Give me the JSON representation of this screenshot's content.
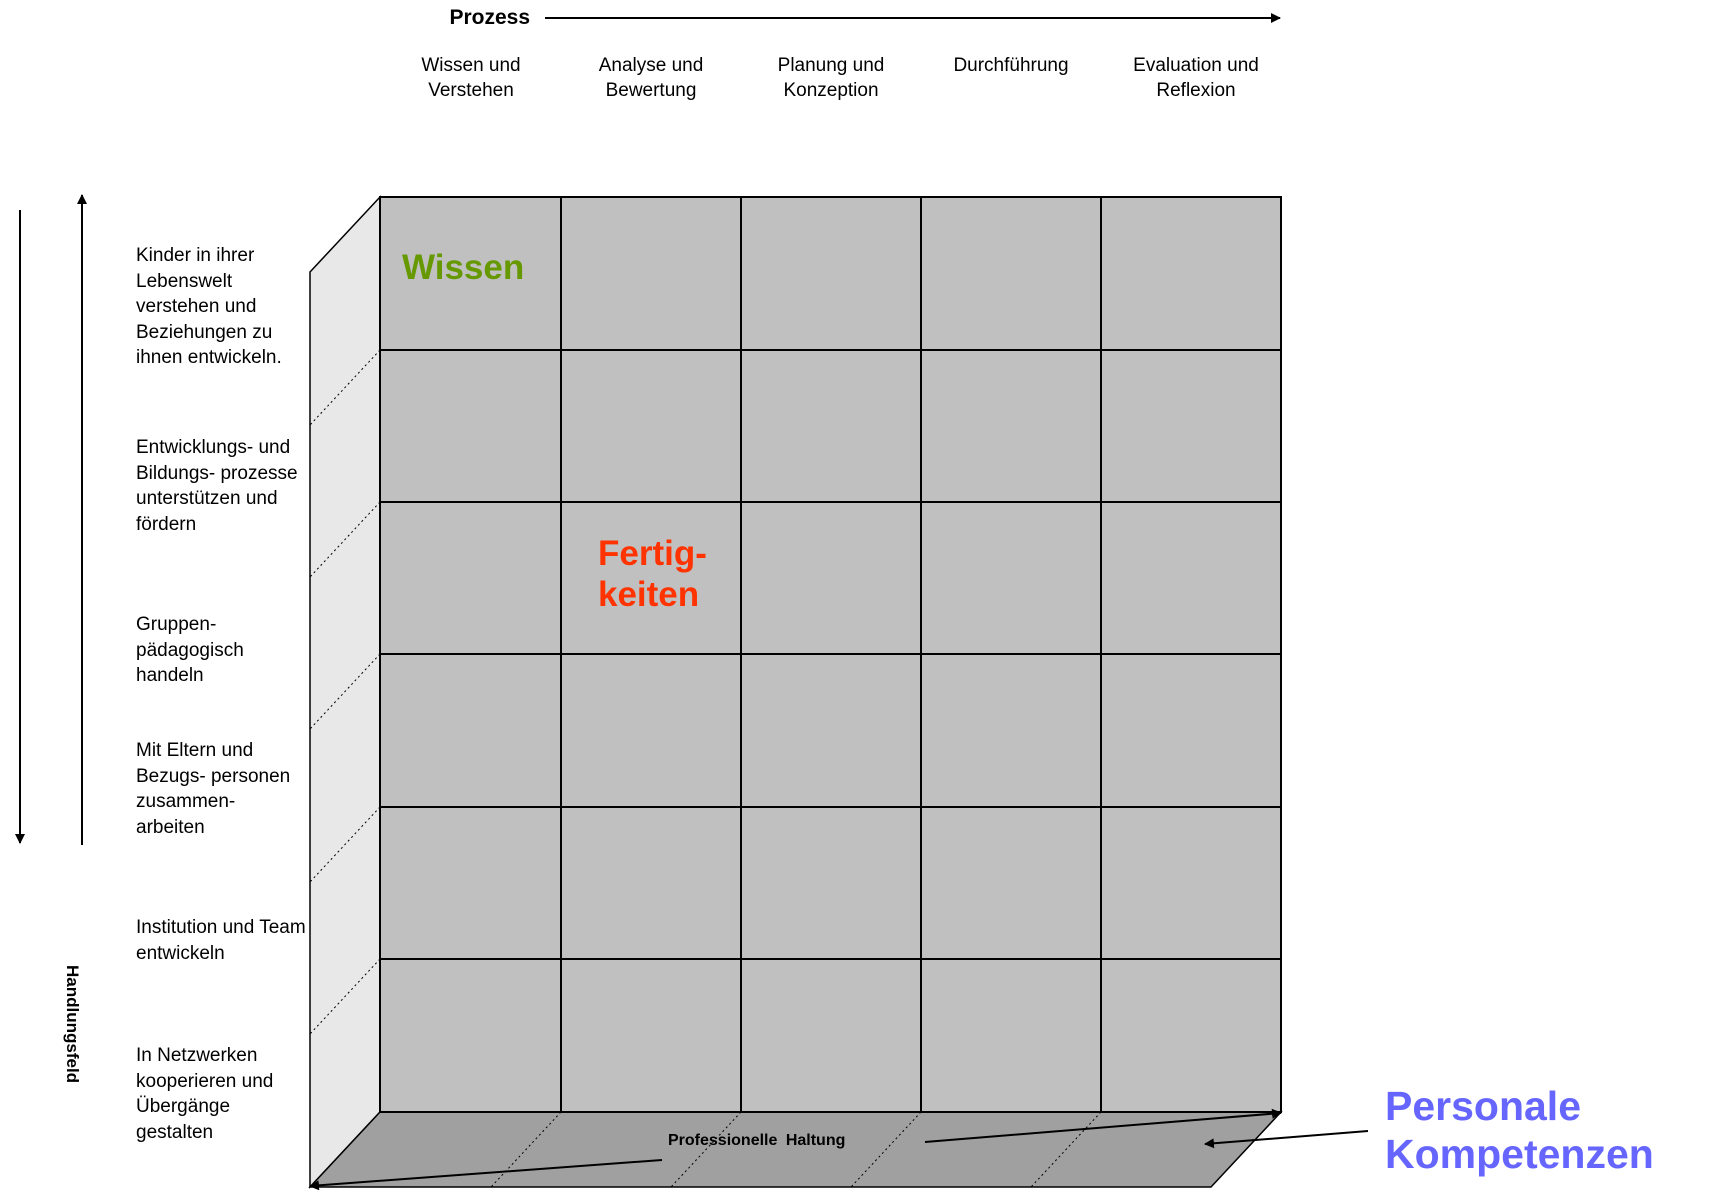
{
  "process_axis": {
    "title": "Prozess",
    "columns": [
      {
        "line1": "Wissen und",
        "line2": "Verstehen"
      },
      {
        "line1": "Analyse und",
        "line2": "Bewertung"
      },
      {
        "line1": "Planung und",
        "line2": "Konzeption"
      },
      {
        "line1": "Durchführung",
        "line2": ""
      },
      {
        "line1": "Evaluation und",
        "line2": "Reflexion"
      }
    ]
  },
  "field_axis": {
    "title": "Handlungsfeld",
    "rows": [
      "Kinder in ihrer Lebenswelt verstehen und Beziehungen zu ihnen entwickeln.",
      "Entwicklungs- und Bildungs- prozesse unterstützen und fördern",
      "Gruppen- pädagogisch handeln",
      "Mit Eltern und Bezugs- personen zusammen- arbeiten",
      "Institution und Team entwickeln",
      "In Netzwerken kooperieren und Übergänge gestalten"
    ]
  },
  "cube_labels": {
    "wissen": "Wissen",
    "fertigkeiten": "Fertig- keiten",
    "haltung": "Professionelle Haltung",
    "personal": "Personale Kompetenzen"
  },
  "colors": {
    "front_face": "#c0c0c0",
    "side_face": "#e8e8e8",
    "bottom_face": "#a0a0a0",
    "wissen": "#669900",
    "fertigkeiten": "#ff3300",
    "personal": "#6666ff"
  }
}
